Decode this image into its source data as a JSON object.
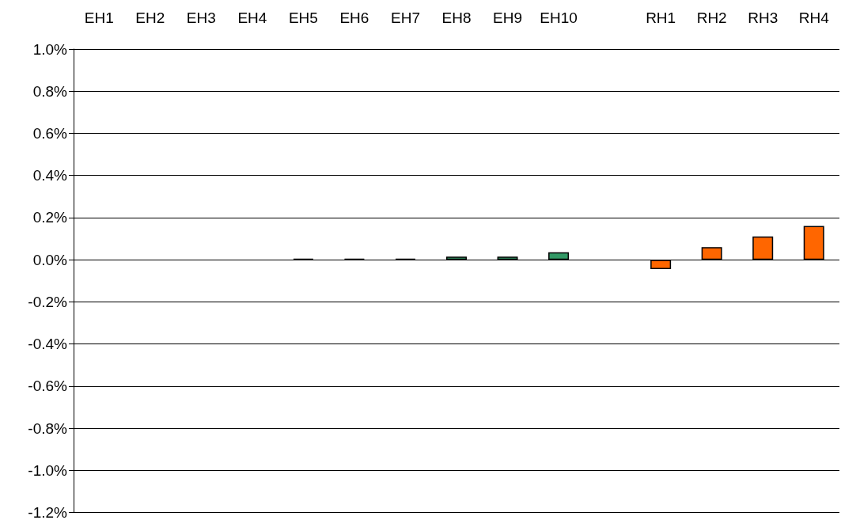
{
  "chart_data": {
    "type": "bar",
    "categories": [
      "EH1",
      "EH2",
      "EH3",
      "EH4",
      "EH5",
      "EH6",
      "EH7",
      "EH8",
      "EH9",
      "EH10",
      null,
      "RH1",
      "RH2",
      "RH3",
      "RH4"
    ],
    "values": [
      null,
      null,
      null,
      null,
      0.004,
      0.004,
      0.004,
      0.015,
      0.015,
      0.035,
      null,
      -0.045,
      0.06,
      0.11,
      0.16
    ],
    "colors": [
      "#339966",
      "#339966",
      "#339966",
      "#339966",
      "#000000",
      "#000000",
      "#000000",
      "#339966",
      "#339966",
      "#339966",
      "#339966",
      "#ff6600",
      "#ff6600",
      "#ff6600",
      "#ff6600"
    ],
    "ylim": [
      -1.2,
      1.0
    ],
    "yticks": [
      {
        "value": -1.2,
        "label": "-1.2%"
      },
      {
        "value": -1.0,
        "label": "-1.0%"
      },
      {
        "value": -0.8,
        "label": "-0.8%"
      },
      {
        "value": -0.6,
        "label": "-0.6%"
      },
      {
        "value": -0.4,
        "label": "-0.4%"
      },
      {
        "value": -0.2,
        "label": "-0.2%"
      },
      {
        "value": 0,
        "label": "0.0%"
      },
      {
        "value": 0.2,
        "label": "0.2%"
      },
      {
        "value": 0.4,
        "label": "0.4%"
      },
      {
        "value": 0.6,
        "label": "0.6%"
      },
      {
        "value": 0.8,
        "label": "0.8%"
      },
      {
        "value": 1.0,
        "label": "1.0%"
      }
    ],
    "grid": "y"
  }
}
